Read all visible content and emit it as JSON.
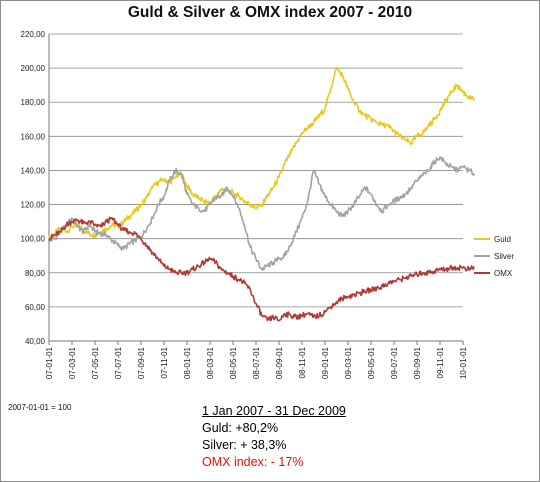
{
  "title": "Guld & Silver & OMX index 2007 - 2010",
  "colors": {
    "guld": "#e8c81a",
    "silver": "#a3a3a3",
    "omx": "#b03a36",
    "grid": "#8a8a8a"
  },
  "chart_data": {
    "type": "line",
    "title": "Guld & Silver & OMX index 2007 - 2010",
    "ylim": [
      40,
      220
    ],
    "y_ticks": [
      "40,00",
      "60,00",
      "80,00",
      "100,00",
      "120,00",
      "140,00",
      "160,00",
      "180,00",
      "200,00",
      "220,00"
    ],
    "x_ticks": [
      "07-01-01",
      "07-03-01",
      "07-05-01",
      "07-07-01",
      "07-09-01",
      "07-11-01",
      "08-01-01",
      "08-03-01",
      "08-05-01",
      "08-07-01",
      "08-09-01",
      "08-11-01",
      "09-01-01",
      "09-03-01",
      "09-05-01",
      "09-07-01",
      "09-09-01",
      "09-11-01",
      "10-01-01"
    ],
    "legend_position": "right",
    "grid": "horizontal",
    "series": [
      {
        "name": "Guld",
        "color": "#e8c81a",
        "points": [
          [
            0,
            100
          ],
          [
            0.5,
            103
          ],
          [
            1,
            106
          ],
          [
            1.5,
            104
          ],
          [
            2,
            107
          ],
          [
            2.5,
            108
          ],
          [
            3,
            105
          ],
          [
            3.5,
            103
          ],
          [
            4,
            102
          ],
          [
            4.5,
            104
          ],
          [
            5,
            106
          ],
          [
            5.5,
            108
          ],
          [
            6,
            107
          ],
          [
            6.5,
            110
          ],
          [
            7,
            113
          ],
          [
            7.5,
            116
          ],
          [
            8,
            120
          ],
          [
            8.5,
            124
          ],
          [
            9,
            130
          ],
          [
            9.5,
            133
          ],
          [
            10,
            135
          ],
          [
            10.5,
            133
          ],
          [
            11,
            136
          ],
          [
            11.5,
            138
          ],
          [
            12,
            131
          ],
          [
            12.5,
            126
          ],
          [
            13,
            124
          ],
          [
            13.5,
            122
          ],
          [
            14,
            121
          ],
          [
            14.5,
            125
          ],
          [
            15,
            129
          ],
          [
            15.5,
            128
          ],
          [
            16,
            127
          ],
          [
            16.5,
            125
          ],
          [
            17,
            122
          ],
          [
            17.5,
            120
          ],
          [
            18,
            118
          ],
          [
            18.5,
            120
          ],
          [
            19,
            125
          ],
          [
            19.5,
            130
          ],
          [
            20,
            136
          ],
          [
            20.5,
            144
          ],
          [
            21,
            150
          ],
          [
            21.5,
            156
          ],
          [
            22,
            162
          ],
          [
            22.5,
            165
          ],
          [
            23,
            168
          ],
          [
            23.5,
            172
          ],
          [
            24,
            176
          ],
          [
            24.5,
            188
          ],
          [
            25,
            200
          ],
          [
            25.5,
            196
          ],
          [
            26,
            188
          ],
          [
            26.5,
            180
          ],
          [
            27,
            175
          ],
          [
            27.5,
            172
          ],
          [
            28,
            170
          ],
          [
            28.5,
            168
          ],
          [
            29,
            167
          ],
          [
            29.5,
            166
          ],
          [
            30,
            163
          ],
          [
            30.5,
            160
          ],
          [
            31,
            158
          ],
          [
            31.5,
            156
          ],
          [
            32,
            160
          ],
          [
            32.5,
            162
          ],
          [
            33,
            166
          ],
          [
            33.5,
            170
          ],
          [
            34,
            175
          ],
          [
            34.5,
            181
          ],
          [
            35,
            186
          ],
          [
            35.5,
            190
          ],
          [
            36,
            186
          ],
          [
            36.5,
            183
          ],
          [
            37,
            181
          ]
        ]
      },
      {
        "name": "Silver",
        "color": "#a3a3a3",
        "points": [
          [
            0,
            99
          ],
          [
            0.5,
            100
          ],
          [
            1,
            104
          ],
          [
            1.5,
            108
          ],
          [
            2,
            112
          ],
          [
            2.5,
            107
          ],
          [
            3,
            104
          ],
          [
            3.5,
            108
          ],
          [
            4,
            104
          ],
          [
            4.5,
            103
          ],
          [
            5,
            102
          ],
          [
            5.5,
            99
          ],
          [
            6,
            96
          ],
          [
            6.5,
            94
          ],
          [
            7,
            97
          ],
          [
            7.5,
            99
          ],
          [
            8,
            101
          ],
          [
            8.5,
            106
          ],
          [
            9,
            112
          ],
          [
            9.5,
            120
          ],
          [
            10,
            125
          ],
          [
            10.5,
            134
          ],
          [
            11,
            140
          ],
          [
            11.5,
            138
          ],
          [
            12,
            126
          ],
          [
            12.5,
            120
          ],
          [
            13,
            118
          ],
          [
            13.5,
            116
          ],
          [
            14,
            120
          ],
          [
            14.5,
            124
          ],
          [
            15,
            125
          ],
          [
            15.5,
            130
          ],
          [
            16,
            125
          ],
          [
            16.5,
            118
          ],
          [
            17,
            108
          ],
          [
            17.5,
            95
          ],
          [
            18,
            88
          ],
          [
            18.5,
            82
          ],
          [
            19,
            84
          ],
          [
            19.5,
            86
          ],
          [
            20,
            88
          ],
          [
            20.5,
            90
          ],
          [
            21,
            96
          ],
          [
            21.5,
            104
          ],
          [
            22,
            112
          ],
          [
            22.5,
            122
          ],
          [
            23,
            140
          ],
          [
            23.5,
            132
          ],
          [
            24,
            125
          ],
          [
            24.5,
            120
          ],
          [
            25,
            116
          ],
          [
            25.5,
            113
          ],
          [
            26,
            116
          ],
          [
            26.5,
            120
          ],
          [
            27,
            125
          ],
          [
            27.5,
            130
          ],
          [
            28,
            126
          ],
          [
            28.5,
            120
          ],
          [
            29,
            116
          ],
          [
            29.5,
            120
          ],
          [
            30,
            122
          ],
          [
            30.5,
            124
          ],
          [
            31,
            126
          ],
          [
            31.5,
            130
          ],
          [
            32,
            134
          ],
          [
            32.5,
            137
          ],
          [
            33,
            140
          ],
          [
            33.5,
            145
          ],
          [
            34,
            148
          ],
          [
            34.5,
            144
          ],
          [
            35,
            142
          ],
          [
            35.5,
            140
          ],
          [
            36,
            142
          ],
          [
            36.5,
            140
          ],
          [
            37,
            138
          ]
        ]
      },
      {
        "name": "OMX",
        "color": "#b03a36",
        "points": [
          [
            0,
            100
          ],
          [
            0.5,
            102
          ],
          [
            1,
            104
          ],
          [
            1.5,
            108
          ],
          [
            2,
            110
          ],
          [
            2.5,
            111
          ],
          [
            3,
            109
          ],
          [
            3.5,
            110
          ],
          [
            4,
            108
          ],
          [
            4.5,
            107
          ],
          [
            5,
            110
          ],
          [
            5.5,
            112
          ],
          [
            6,
            108
          ],
          [
            6.5,
            105
          ],
          [
            7,
            104
          ],
          [
            7.5,
            103
          ],
          [
            8,
            100
          ],
          [
            8.5,
            96
          ],
          [
            9,
            92
          ],
          [
            9.5,
            88
          ],
          [
            10,
            84
          ],
          [
            10.5,
            82
          ],
          [
            11,
            80
          ],
          [
            11.5,
            80
          ],
          [
            12,
            80
          ],
          [
            12.5,
            82
          ],
          [
            13,
            84
          ],
          [
            13.5,
            86
          ],
          [
            14,
            88
          ],
          [
            14.5,
            86
          ],
          [
            15,
            82
          ],
          [
            15.5,
            80
          ],
          [
            16,
            78
          ],
          [
            16.5,
            76
          ],
          [
            17,
            74
          ],
          [
            17.5,
            70
          ],
          [
            18,
            62
          ],
          [
            18.5,
            55
          ],
          [
            19,
            52
          ],
          [
            19.5,
            54
          ],
          [
            20,
            52
          ],
          [
            20.5,
            56
          ],
          [
            21,
            55
          ],
          [
            21.5,
            54
          ],
          [
            22,
            55
          ],
          [
            22.5,
            56
          ],
          [
            23,
            54
          ],
          [
            23.5,
            55
          ],
          [
            24,
            57
          ],
          [
            24.5,
            60
          ],
          [
            25,
            63
          ],
          [
            25.5,
            65
          ],
          [
            26,
            66
          ],
          [
            26.5,
            67
          ],
          [
            27,
            68
          ],
          [
            27.5,
            69
          ],
          [
            28,
            70
          ],
          [
            28.5,
            71
          ],
          [
            29,
            72
          ],
          [
            29.5,
            74
          ],
          [
            30,
            75
          ],
          [
            30.5,
            76
          ],
          [
            31,
            77
          ],
          [
            31.5,
            78
          ],
          [
            32,
            79
          ],
          [
            32.5,
            80
          ],
          [
            33,
            80
          ],
          [
            33.5,
            81
          ],
          [
            34,
            82
          ],
          [
            34.5,
            82
          ],
          [
            35,
            83
          ],
          [
            35.5,
            83
          ],
          [
            36,
            83
          ],
          [
            36.5,
            82
          ],
          [
            37,
            83
          ]
        ]
      }
    ]
  },
  "footer": {
    "base_note": "2007-01-01 = 100",
    "period": "1 Jan 2007 - 31 Dec 2009",
    "guld_line": "Guld: +80,2%",
    "silver_line": "Silver: + 38,3%",
    "omx_line": "OMX index: - 17%"
  }
}
